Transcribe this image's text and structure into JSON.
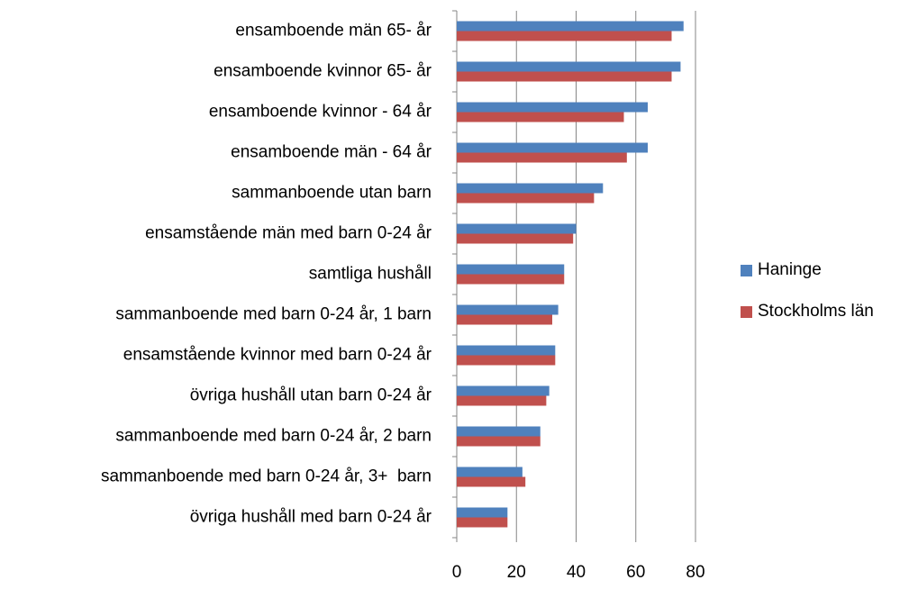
{
  "chart_data": {
    "type": "bar",
    "orientation": "horizontal",
    "categories": [
      "ensamboende män 65- år",
      "ensamboende kvinnor 65- år",
      "ensamboende kvinnor - 64 år",
      "ensamboende män - 64 år",
      "sammanboende utan barn",
      "ensamstående män med barn 0-24 år",
      "samtliga hushåll",
      "sammanboende med barn 0-24 år, 1 barn",
      "ensamstående kvinnor med barn 0-24 år",
      "övriga hushåll utan barn 0-24 år",
      "sammanboende med barn 0-24 år, 2 barn",
      "sammanboende med barn 0-24 år, 3+  barn",
      "övriga hushåll med barn 0-24 år"
    ],
    "series": [
      {
        "name": "Haninge",
        "color": "#4f81bd",
        "values": [
          76,
          75,
          64,
          64,
          49,
          40,
          36,
          34,
          33,
          31,
          28,
          22,
          17
        ]
      },
      {
        "name": "Stockholms län",
        "color": "#c0504d",
        "values": [
          72,
          72,
          56,
          57,
          46,
          39,
          36,
          32,
          33,
          30,
          28,
          23,
          17
        ]
      }
    ],
    "xlim": [
      0,
      80
    ],
    "xticks": [
      0,
      20,
      40,
      60,
      80
    ],
    "grid": true,
    "legend": "right"
  }
}
